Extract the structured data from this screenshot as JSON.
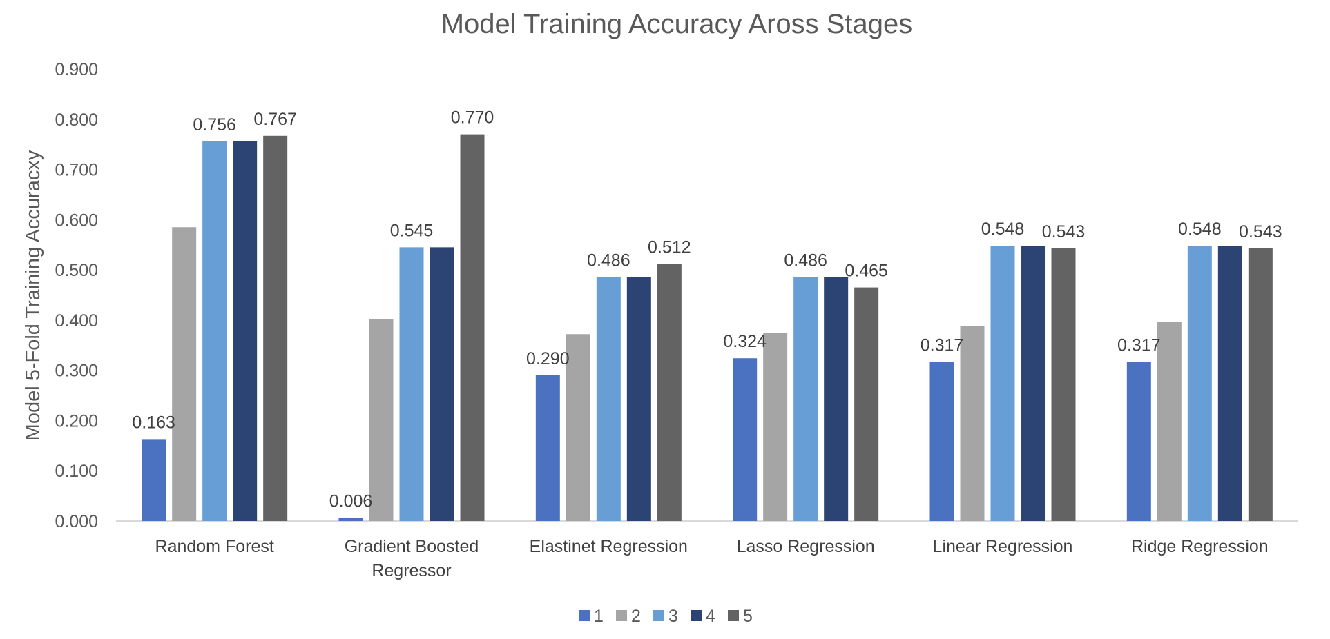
{
  "chart_data": {
    "type": "bar",
    "title": "Model Training Accuracy Aross Stages",
    "ylabel": "Model 5-Fold Training Accuracxy",
    "xlabel": "",
    "ylim": [
      0,
      0.9
    ],
    "yticks": [
      "0.000",
      "0.100",
      "0.200",
      "0.300",
      "0.400",
      "0.500",
      "0.600",
      "0.700",
      "0.800",
      "0.900"
    ],
    "grid": false,
    "legend_position": "bottom",
    "categories": [
      [
        "Random Forest"
      ],
      [
        "Gradient Boosted",
        "Regressor"
      ],
      [
        "Elastinet Regression"
      ],
      [
        "Lasso Regression"
      ],
      [
        "Linear Regression"
      ],
      [
        "Ridge Regression"
      ]
    ],
    "series": [
      {
        "name": "1",
        "color": "#4a72c0",
        "values": [
          0.163,
          0.006,
          0.29,
          0.324,
          0.317,
          0.317
        ]
      },
      {
        "name": "2",
        "color": "#a5a5a5",
        "values": [
          0.585,
          0.402,
          0.372,
          0.374,
          0.388,
          0.397
        ]
      },
      {
        "name": "3",
        "color": "#679ed5",
        "values": [
          0.756,
          0.545,
          0.486,
          0.486,
          0.548,
          0.548
        ]
      },
      {
        "name": "4",
        "color": "#2b4474",
        "values": [
          0.756,
          0.545,
          0.486,
          0.486,
          0.548,
          0.548
        ]
      },
      {
        "name": "5",
        "color": "#636363",
        "values": [
          0.767,
          0.77,
          0.512,
          0.465,
          0.543,
          0.543
        ]
      }
    ],
    "data_labels": [
      {
        "category": 0,
        "series": 0,
        "text": "0.163"
      },
      {
        "category": 0,
        "series": 2,
        "text": "0.756"
      },
      {
        "category": 0,
        "series": 4,
        "text": "0.767"
      },
      {
        "category": 1,
        "series": 0,
        "text": "0.006"
      },
      {
        "category": 1,
        "series": 2,
        "text": "0.545"
      },
      {
        "category": 1,
        "series": 4,
        "text": "0.770"
      },
      {
        "category": 2,
        "series": 0,
        "text": "0.290"
      },
      {
        "category": 2,
        "series": 2,
        "text": "0.486"
      },
      {
        "category": 2,
        "series": 4,
        "text": "0.512"
      },
      {
        "category": 3,
        "series": 0,
        "text": "0.324"
      },
      {
        "category": 3,
        "series": 2,
        "text": "0.486"
      },
      {
        "category": 3,
        "series": 4,
        "text": "0.465"
      },
      {
        "category": 4,
        "series": 0,
        "text": "0.317"
      },
      {
        "category": 4,
        "series": 2,
        "text": "0.548"
      },
      {
        "category": 4,
        "series": 4,
        "text": "0.543"
      },
      {
        "category": 5,
        "series": 0,
        "text": "0.317"
      },
      {
        "category": 5,
        "series": 2,
        "text": "0.548"
      },
      {
        "category": 5,
        "series": 4,
        "text": "0.543"
      }
    ]
  }
}
